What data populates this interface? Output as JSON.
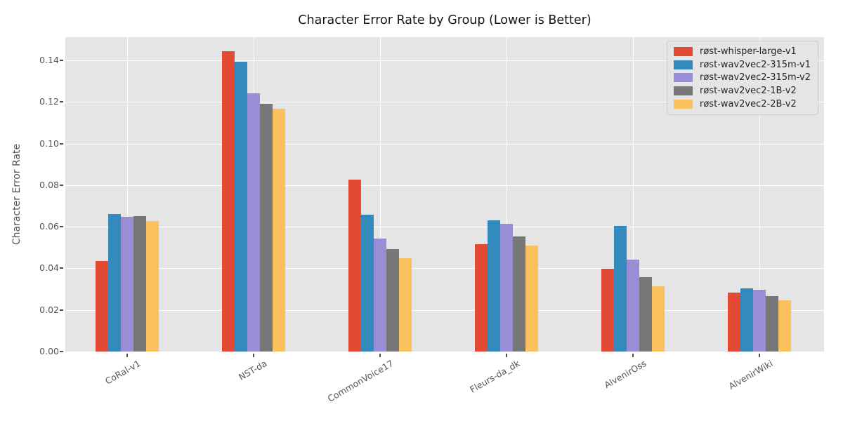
{
  "chart_data": {
    "type": "bar",
    "title": "Character Error Rate by Group (Lower is Better)",
    "xlabel": "",
    "ylabel": "Character Error Rate",
    "categories": [
      "CoRal-v1",
      "NST-da",
      "CommonVoice17",
      "Fleurs-da_dk",
      "AlvenirOss",
      "AlvenirWiki"
    ],
    "series": [
      {
        "name": "røst-whisper-large-v1",
        "color": "#E24A33",
        "values": [
          0.0435,
          0.1444,
          0.0828,
          0.0515,
          0.0397,
          0.0283
        ]
      },
      {
        "name": "røst-wav2vec2-315m-v1",
        "color": "#348ABD",
        "values": [
          0.0662,
          0.1392,
          0.0658,
          0.0632,
          0.0604,
          0.0303
        ]
      },
      {
        "name": "røst-wav2vec2-315m-v2",
        "color": "#988ED5",
        "values": [
          0.0648,
          0.1241,
          0.0544,
          0.0613,
          0.0441,
          0.0296
        ]
      },
      {
        "name": "røst-wav2vec2-1B-v2",
        "color": "#777777",
        "values": [
          0.0651,
          0.1192,
          0.0491,
          0.0553,
          0.0356,
          0.0265
        ]
      },
      {
        "name": "røst-wav2vec2-2B-v2",
        "color": "#FBC15E",
        "values": [
          0.0627,
          0.1168,
          0.0449,
          0.0509,
          0.0315,
          0.0245
        ]
      }
    ],
    "ylim": [
      0,
      0.1511
    ],
    "yticks": [
      "0.00",
      "0.02",
      "0.04",
      "0.06",
      "0.08",
      "0.10",
      "0.12",
      "0.14"
    ],
    "grid": true,
    "legend_position": "upper right",
    "colors": {
      "plot_background": "#E5E5E5",
      "gridline": "#FFFFFF",
      "tick_label": "#555555",
      "tick_mark": "#4D4D4D",
      "legend_background": "#E5E5E5",
      "legend_border": "#CCCCCC",
      "figure_background": "#FFFFFF"
    }
  }
}
